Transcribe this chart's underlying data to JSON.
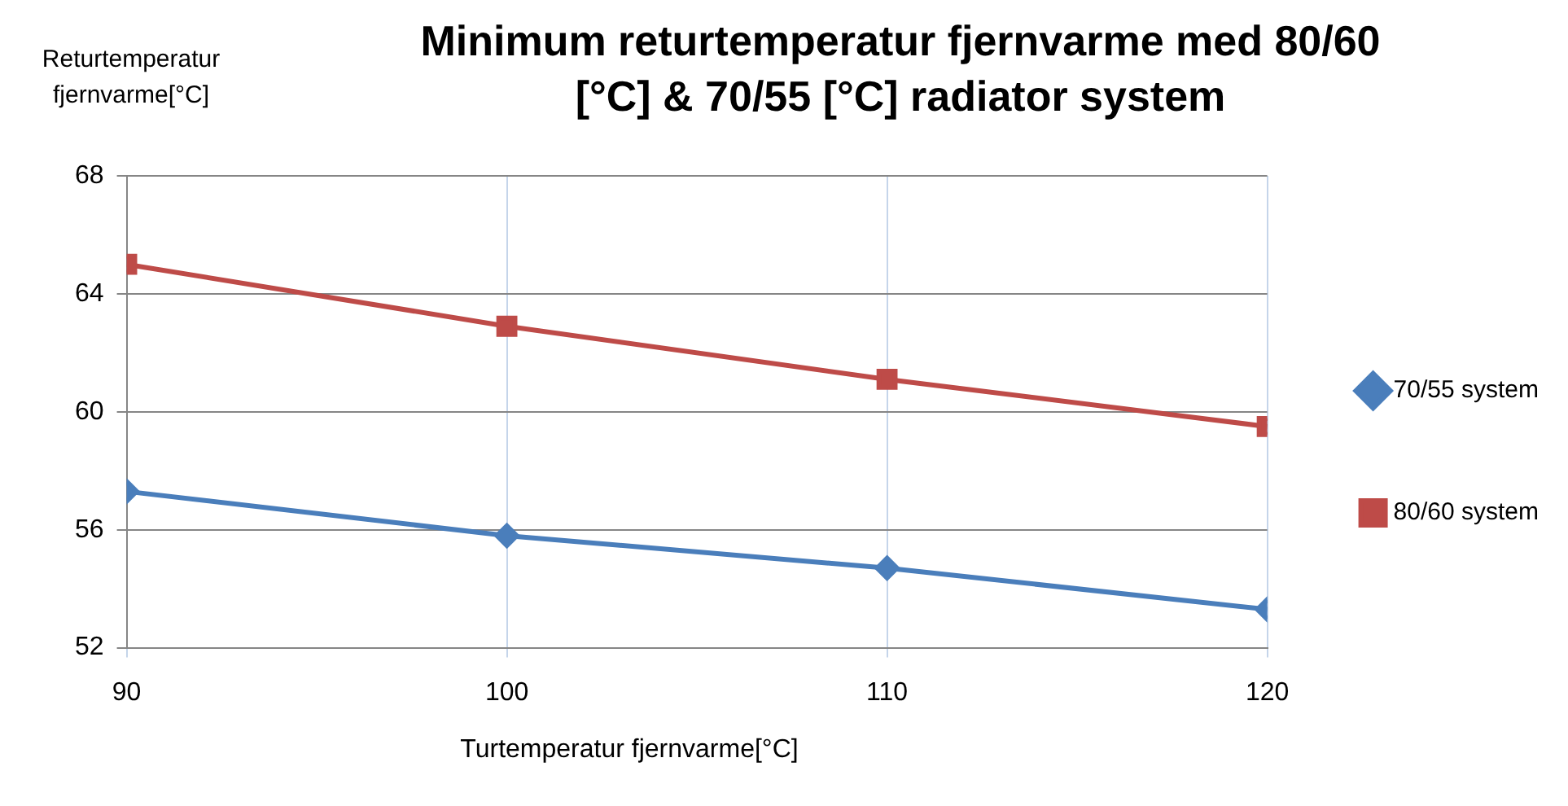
{
  "chart_data": {
    "type": "line",
    "title": "Minimum returtemperatur fjernvarme med 80/60 [°C] & 70/55 [°C] radiator system",
    "xlabel": "Turtemperatur fjernvarme[°C]",
    "ylabel": "Returtemperatur fjernvarme[°C]",
    "x": [
      90,
      100,
      110,
      120
    ],
    "xlim": [
      90,
      120
    ],
    "xticks": [
      90,
      100,
      110,
      120
    ],
    "ylim": [
      52,
      68
    ],
    "yticks": [
      52,
      56,
      60,
      64,
      68
    ],
    "grid": true,
    "legend": "right",
    "line_style": "solid",
    "series": [
      {
        "name": "70/55 system",
        "color": "#4a7ebb",
        "marker": "diamond",
        "values": [
          57.3,
          55.8,
          54.7,
          53.3
        ]
      },
      {
        "name": "80/60 system",
        "color": "#be4b48",
        "marker": "square",
        "values": [
          65.0,
          62.9,
          61.1,
          59.5
        ]
      }
    ]
  }
}
